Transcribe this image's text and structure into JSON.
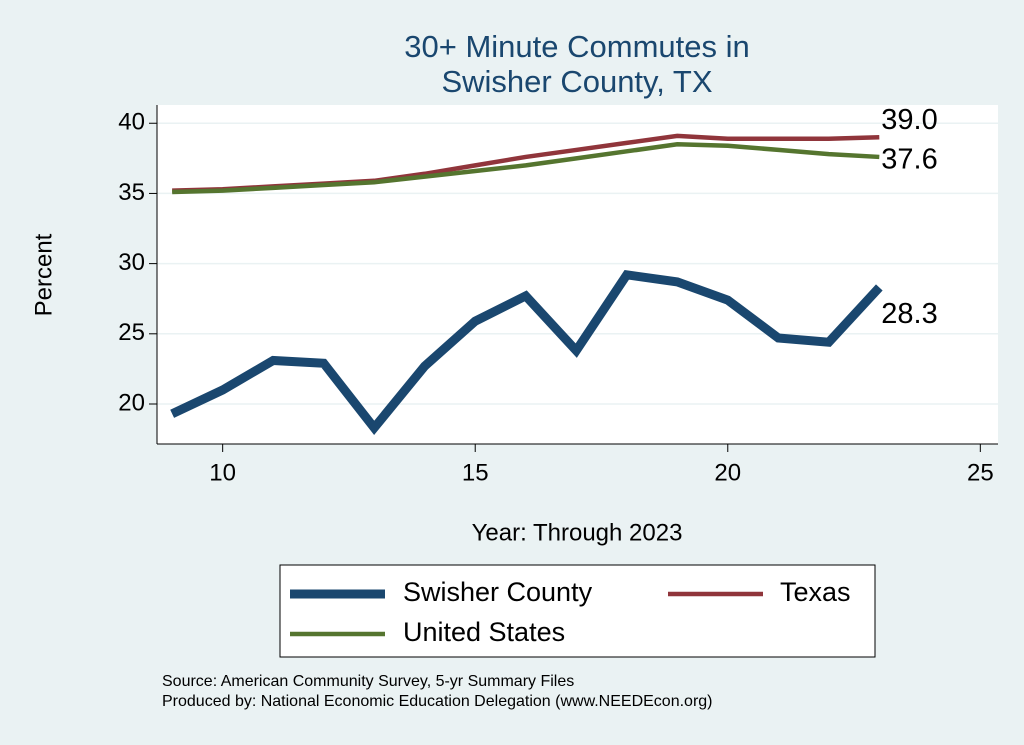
{
  "chart_data": {
    "type": "line",
    "title": [
      "30+ Minute Commutes in",
      "Swisher County, TX"
    ],
    "xlabel": "Year: Through 2023",
    "ylabel": "Percent",
    "x": [
      9,
      10,
      11,
      12,
      13,
      14,
      15,
      16,
      17,
      18,
      19,
      20,
      21,
      22,
      23
    ],
    "series": [
      {
        "name": "Swisher County",
        "color": "#1a476f",
        "values": [
          19.3,
          21.0,
          23.1,
          22.9,
          18.3,
          22.7,
          25.9,
          27.7,
          23.8,
          29.2,
          28.7,
          27.4,
          24.7,
          24.4,
          28.3
        ],
        "value_labels": [
          null,
          null,
          null,
          null,
          null,
          null,
          null,
          null,
          null,
          null,
          null,
          null,
          null,
          null,
          "28.3"
        ]
      },
      {
        "name": "Texas",
        "color": "#90353b",
        "values": [
          35.2,
          35.3,
          35.5,
          35.7,
          35.9,
          36.4,
          37.0,
          37.6,
          38.1,
          38.6,
          39.1,
          38.9,
          38.9,
          38.9,
          39.0
        ],
        "value_labels": [
          null,
          null,
          null,
          null,
          null,
          null,
          null,
          null,
          null,
          null,
          null,
          null,
          null,
          null,
          "39.0"
        ]
      },
      {
        "name": "United States",
        "color": "#55752f",
        "values": [
          35.1,
          35.2,
          35.4,
          35.6,
          35.8,
          36.2,
          36.6,
          37.0,
          37.5,
          38.0,
          38.5,
          38.4,
          38.1,
          37.8,
          37.6
        ],
        "value_labels": [
          null,
          null,
          null,
          null,
          null,
          null,
          null,
          null,
          null,
          null,
          null,
          null,
          null,
          null,
          "37.6"
        ]
      }
    ],
    "xlim": [
      8.7,
      25.35
    ],
    "xticks": [
      10,
      15,
      20,
      25
    ],
    "ylim": [
      17.15,
      41.3
    ],
    "yticks": [
      20,
      25,
      30,
      35,
      40
    ],
    "grid": true,
    "notes": [
      "Source: American Community Survey, 5-yr Summary Files",
      "Produced by: National Economic Education Delegation (www.NEEDEcon.org)"
    ]
  }
}
